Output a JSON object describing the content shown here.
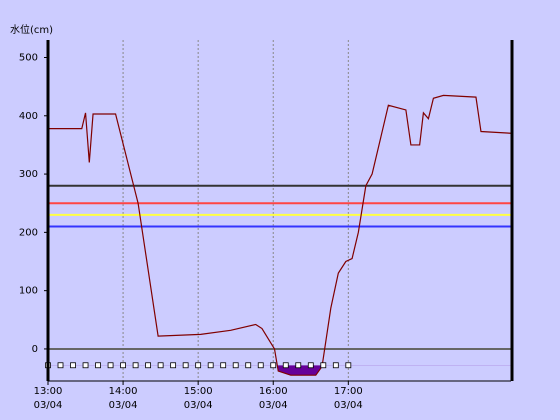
{
  "chart_data": {
    "type": "line",
    "y_label": "水位(cm)",
    "xlim": [
      "13:00",
      "19:10"
    ],
    "xticks": [
      {
        "value": "13:00",
        "label": [
          "13:00",
          "03/04"
        ]
      },
      {
        "value": "14:00",
        "label": [
          "14:00",
          "03/04"
        ]
      },
      {
        "value": "15:00",
        "label": [
          "15:00",
          "03/04"
        ]
      },
      {
        "value": "16:00",
        "label": [
          "16:00",
          "03/04"
        ]
      },
      {
        "value": "17:00",
        "label": [
          "17:00",
          "03/04"
        ]
      }
    ],
    "ylim": [
      -55,
      530
    ],
    "yticks": [
      0,
      100,
      200,
      300,
      400,
      500
    ],
    "grid": true,
    "thresholds": [
      {
        "value": 280,
        "color": "#333333"
      },
      {
        "value": 250,
        "color": "#ff4444"
      },
      {
        "value": 230,
        "color": "#ffff44"
      },
      {
        "value": 210,
        "color": "#3333ff"
      },
      {
        "value": 0,
        "color": "#666666"
      }
    ],
    "series": [
      {
        "color": "#800000",
        "fill_color": "#660099",
        "fill_below": -28,
        "x": [
          "13:00",
          "13:27",
          "13:30",
          "13:33",
          "13:36",
          "13:54",
          "14:12",
          "14:28",
          "15:02",
          "15:26",
          "15:46",
          "15:51",
          "16:01",
          "16:04",
          "16:14",
          "16:34",
          "16:39",
          "16:46",
          "16:52",
          "16:58",
          "17:03",
          "17:08",
          "17:14",
          "17:19",
          "17:32",
          "17:46",
          "17:50",
          "17:57",
          "18:00",
          "18:04",
          "18:08",
          "18:16",
          "18:42",
          "18:46",
          "19:10"
        ],
        "values": [
          378,
          378,
          405,
          320,
          403,
          403,
          250,
          22,
          25,
          32,
          42,
          35,
          0,
          -38,
          -45,
          -45,
          -30,
          70,
          130,
          150,
          155,
          200,
          280,
          300,
          418,
          410,
          350,
          350,
          405,
          395,
          430,
          435,
          432,
          373,
          370
        ]
      },
      {
        "marker": "square",
        "color": "#ffffff",
        "x": [
          "13:00",
          "13:10",
          "13:20",
          "13:30",
          "13:40",
          "13:50",
          "14:00",
          "14:10",
          "14:20",
          "14:30",
          "14:40",
          "14:50",
          "15:00",
          "15:10",
          "15:20",
          "15:30",
          "15:40",
          "15:50",
          "16:00",
          "16:10",
          "16:20",
          "16:30",
          "16:40",
          "16:50",
          "17:00"
        ],
        "values": [
          -28,
          -28,
          -28,
          -28,
          -28,
          -28,
          -28,
          -28,
          -28,
          -28,
          -28,
          -28,
          -28,
          -28,
          -28,
          -28,
          -28,
          -28,
          -28,
          -28,
          -28,
          -28,
          -28,
          -28,
          -28
        ]
      }
    ]
  }
}
